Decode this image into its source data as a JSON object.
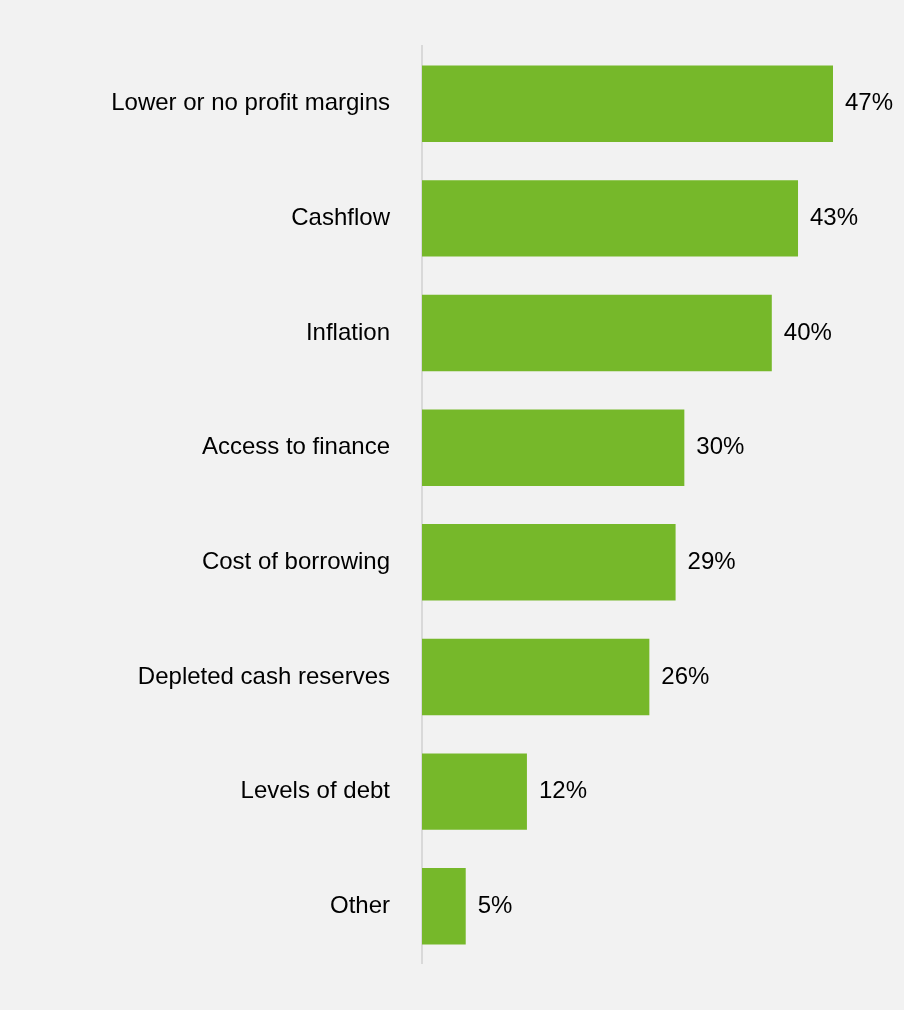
{
  "chart_data": {
    "type": "bar",
    "orientation": "horizontal",
    "categories": [
      "Lower or no profit margins",
      "Cashflow",
      "Inflation",
      "Access to finance",
      "Cost of borrowing",
      "Depleted cash reserves",
      "Levels of debt",
      "Other"
    ],
    "values": [
      47,
      43,
      40,
      30,
      29,
      26,
      12,
      5
    ],
    "value_labels": [
      "47%",
      "43%",
      "40%",
      "30%",
      "29%",
      "26%",
      "12%",
      "5%"
    ],
    "color": "#76b82a",
    "grid": false,
    "legend": false
  }
}
